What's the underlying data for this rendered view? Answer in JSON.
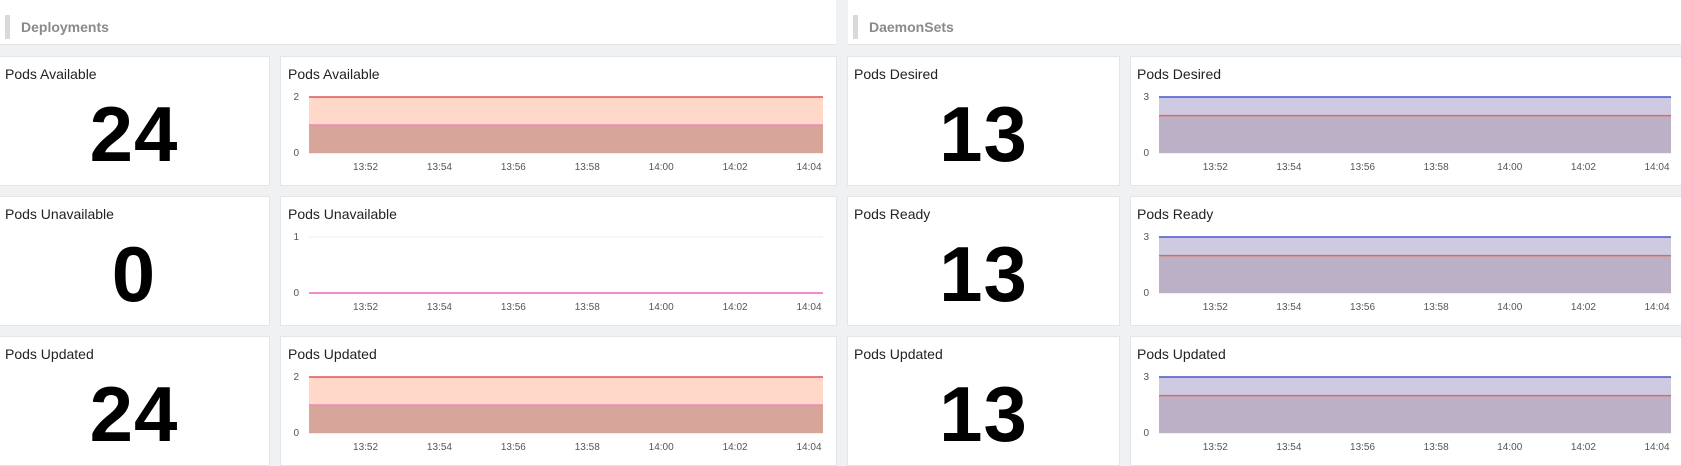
{
  "sections": [
    {
      "title": "Deployments"
    },
    {
      "title": "DaemonSets"
    }
  ],
  "x_ticks": [
    "13:52",
    "13:54",
    "13:56",
    "13:58",
    "14:00",
    "14:02",
    "14:04"
  ],
  "stats": [
    {
      "title": "Pods Available",
      "value": "24"
    },
    {
      "title": "Pods Unavailable",
      "value": "0"
    },
    {
      "title": "Pods Updated",
      "value": "24"
    },
    {
      "title": "Pods Desired",
      "value": "13"
    },
    {
      "title": "Pods Ready",
      "value": "13"
    },
    {
      "title": "Pods Updated",
      "value": "13"
    }
  ],
  "chart_data": [
    {
      "type": "area",
      "title": "Pods Available",
      "x": [
        "13:52",
        "13:54",
        "13:56",
        "13:58",
        "14:00",
        "14:02",
        "14:04"
      ],
      "yticks": [
        "0",
        "2"
      ],
      "ylim": [
        0,
        2
      ],
      "series": [
        {
          "color": "#e05555",
          "fill": "#ffd8ca",
          "values": [
            2,
            2,
            2,
            2,
            2,
            2,
            2
          ]
        },
        {
          "color": "#ee88c0",
          "fill": "#d8a59b",
          "values": [
            1,
            1,
            1,
            1,
            1,
            1,
            1
          ]
        }
      ]
    },
    {
      "type": "area",
      "title": "Pods Unavailable",
      "x": [
        "13:52",
        "13:54",
        "13:56",
        "13:58",
        "14:00",
        "14:02",
        "14:04"
      ],
      "yticks": [
        "0",
        "1"
      ],
      "ylim": [
        0,
        1
      ],
      "series": [
        {
          "color": "#ee66bb",
          "fill": "none",
          "values": [
            0,
            0,
            0,
            0,
            0,
            0,
            0
          ]
        }
      ]
    },
    {
      "type": "area",
      "title": "Pods Updated",
      "x": [
        "13:52",
        "13:54",
        "13:56",
        "13:58",
        "14:00",
        "14:02",
        "14:04"
      ],
      "yticks": [
        "0",
        "2"
      ],
      "ylim": [
        0,
        2
      ],
      "series": [
        {
          "color": "#e05555",
          "fill": "#ffd8ca",
          "values": [
            2,
            2,
            2,
            2,
            2,
            2,
            2
          ]
        },
        {
          "color": "#ee88c0",
          "fill": "#d8a59b",
          "values": [
            1,
            1,
            1,
            1,
            1,
            1,
            1
          ]
        }
      ]
    },
    {
      "type": "area",
      "title": "Pods Desired",
      "x": [
        "13:52",
        "13:54",
        "13:56",
        "13:58",
        "14:00",
        "14:02",
        "14:04"
      ],
      "yticks": [
        "0",
        "3"
      ],
      "ylim": [
        0,
        3
      ],
      "series": [
        {
          "color": "#4a55d0",
          "fill": "#cdcae2",
          "values": [
            3,
            3,
            3,
            3,
            3,
            3,
            3
          ]
        },
        {
          "color": "#e06a5a",
          "fill": "#bcb0c6",
          "values": [
            2,
            2,
            2,
            2,
            2,
            2,
            2
          ]
        }
      ]
    },
    {
      "type": "area",
      "title": "Pods Ready",
      "x": [
        "13:52",
        "13:54",
        "13:56",
        "13:58",
        "14:00",
        "14:02",
        "14:04"
      ],
      "yticks": [
        "0",
        "3"
      ],
      "ylim": [
        0,
        3
      ],
      "series": [
        {
          "color": "#4a55d0",
          "fill": "#cdcae2",
          "values": [
            3,
            3,
            3,
            3,
            3,
            3,
            3
          ]
        },
        {
          "color": "#e06a5a",
          "fill": "#bcb0c6",
          "values": [
            2,
            2,
            2,
            2,
            2,
            2,
            2
          ]
        }
      ]
    },
    {
      "type": "area",
      "title": "Pods Updated",
      "x": [
        "13:52",
        "13:54",
        "13:56",
        "13:58",
        "14:00",
        "14:02",
        "14:04"
      ],
      "yticks": [
        "0",
        "3"
      ],
      "ylim": [
        0,
        3
      ],
      "series": [
        {
          "color": "#4a55d0",
          "fill": "#cdcae2",
          "values": [
            3,
            3,
            3,
            3,
            3,
            3,
            3
          ]
        },
        {
          "color": "#e06a5a",
          "fill": "#bcb0c6",
          "values": [
            2,
            2,
            2,
            2,
            2,
            2,
            2
          ]
        }
      ]
    }
  ]
}
